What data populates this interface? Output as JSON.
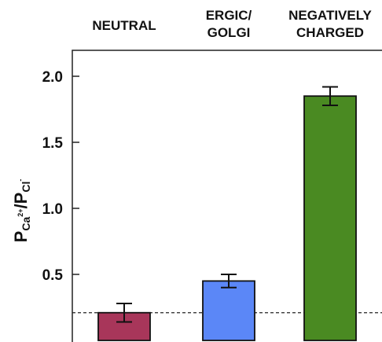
{
  "chart_data": {
    "type": "bar",
    "categories": [
      [
        "NEUTRAL"
      ],
      [
        "ERGIC/",
        "GOLGI"
      ],
      [
        "NEGATIVELY",
        "CHARGED"
      ]
    ],
    "values": [
      0.21,
      0.45,
      1.85
    ],
    "errors": [
      0.07,
      0.05,
      0.07
    ],
    "colors": [
      "#A8365A",
      "#5B87F7",
      "#4A8A22"
    ],
    "ylabel": {
      "p1": "P",
      "s1": "Ca",
      "sup1": "2+",
      "slash": "/",
      "p2": "P",
      "s2": "Cl",
      "sup2": "-"
    },
    "ylim": [
      0,
      2.2
    ],
    "yticks": [
      0.5,
      1.0,
      1.5,
      2.0
    ],
    "ytick_labels": [
      "0.5",
      "1.0",
      "1.5",
      "2.0"
    ],
    "reference_line": 0.21,
    "grid": false,
    "legend": "none"
  }
}
